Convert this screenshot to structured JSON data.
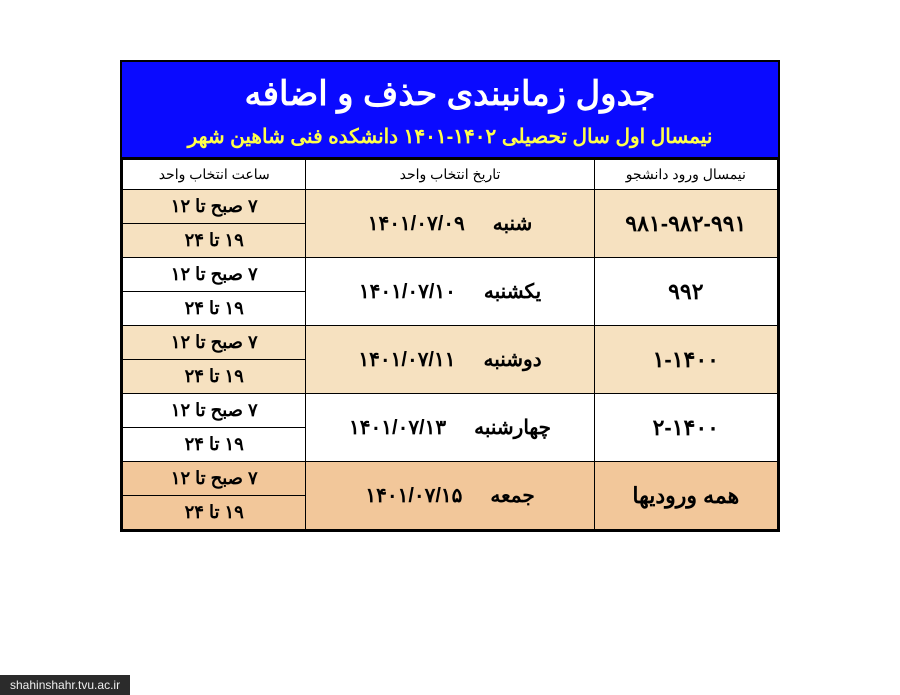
{
  "header": {
    "title": "جدول زمانبندی حذف و اضافه",
    "subtitle": "نیمسال اول سال تحصیلی ۱۴۰۲-۱۴۰۱ دانشکده فنی شاهین شهر"
  },
  "columns": {
    "entry": "نیمسال ورود دانشجو",
    "date": "تاریخ انتخاب واحد",
    "time": "ساعت انتخاب واحد"
  },
  "time_slots": {
    "morning": "۷ صبح تا ۱۲",
    "evening": "۱۹ تا ۲۴"
  },
  "rows": [
    {
      "entry": "۹۸۱-۹۸۲-۹۹۱",
      "day": "شنبه",
      "date": "۱۴۰۱/۰۷/۰۹",
      "style": "alt"
    },
    {
      "entry": "۹۹۲",
      "day": "یکشنبه",
      "date": "۱۴۰۱/۰۷/۱۰",
      "style": "plain"
    },
    {
      "entry": "۱-۱۴۰۰",
      "day": "دوشنبه",
      "date": "۱۴۰۱/۰۷/۱۱",
      "style": "alt"
    },
    {
      "entry": "۲-۱۴۰۰",
      "day": "چهارشنبه",
      "date": "۱۴۰۱/۰۷/۱۳",
      "style": "plain"
    },
    {
      "entry": "همه ورودیها",
      "day": "جمعه",
      "date": "۱۴۰۱/۰۷/۱۵",
      "style": "highlight"
    }
  ],
  "footer": "shahinshahr.tvu.ac.ir"
}
